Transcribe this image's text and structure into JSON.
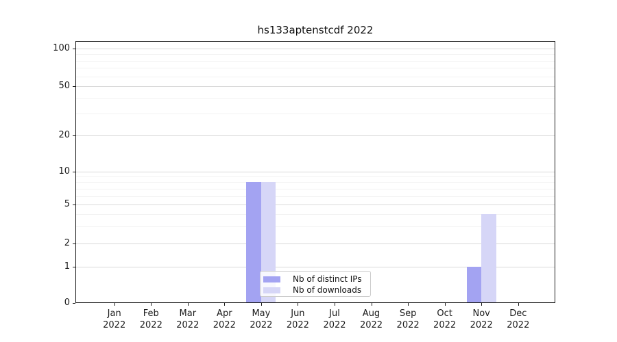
{
  "title": "hs133aptenstcdf 2022",
  "chart_data": {
    "type": "bar",
    "title": "hs133aptenstcdf 2022",
    "categories": [
      "Jan",
      "Feb",
      "Mar",
      "Apr",
      "May",
      "Jun",
      "Jul",
      "Aug",
      "Sep",
      "Oct",
      "Nov",
      "Dec"
    ],
    "category_year": "2022",
    "series": [
      {
        "name": "Nb of distinct IPs",
        "color": "#a3a3f2",
        "values": [
          0,
          0,
          0,
          0,
          8,
          0,
          0,
          0,
          0,
          0,
          1,
          0
        ]
      },
      {
        "name": "Nb of downloads",
        "color": "#d6d6f7",
        "values": [
          0,
          0,
          0,
          0,
          8,
          0,
          0,
          0,
          0,
          0,
          4,
          0
        ]
      }
    ],
    "yticks": [
      {
        "value": 0,
        "label": "0"
      },
      {
        "value": 1,
        "label": "1"
      },
      {
        "value": 2,
        "label": "2"
      },
      {
        "value": 5,
        "label": "5"
      },
      {
        "value": 10,
        "label": "10"
      },
      {
        "value": 20,
        "label": "20"
      },
      {
        "value": 50,
        "label": "50"
      },
      {
        "value": 100,
        "label": "100"
      }
    ],
    "minor_gridline_values": [
      3,
      4,
      6,
      7,
      8,
      9,
      30,
      40,
      60,
      70,
      80,
      90
    ],
    "yscale": "symlog",
    "ylim": [
      0,
      115
    ],
    "xlabel": "",
    "ylabel": "",
    "grid": true,
    "legend": {
      "labels": [
        "Nb of distinct IPs",
        "Nb of downloads"
      ],
      "position": "lower-center"
    }
  },
  "colors": {
    "bar_distinct_ips": "#a3a3f2",
    "bar_downloads": "#d6d6f7",
    "grid_major": "#d9d9d9",
    "grid_minor": "#f2f2f2",
    "axis": "#1a1a1a",
    "legend_border": "#cccccc",
    "background": "#ffffff"
  }
}
